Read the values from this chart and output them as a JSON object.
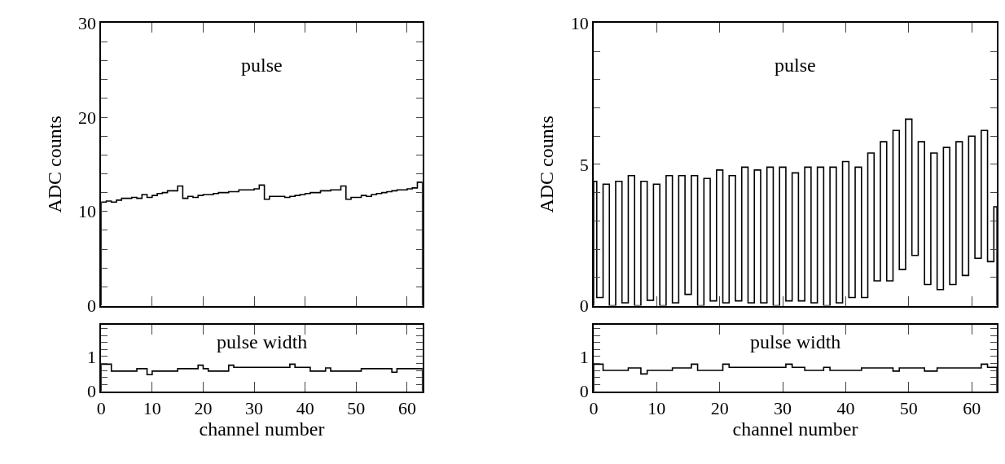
{
  "chart_data": [
    {
      "type": "histogram",
      "ylabel": "ADC counts",
      "annotations": [
        {
          "text": "pulse"
        }
      ],
      "color": "#000000",
      "bins": [
        0,
        1,
        2,
        3,
        4,
        5,
        6,
        7,
        8,
        9,
        10,
        11,
        12,
        13,
        14,
        15,
        16,
        17,
        18,
        19,
        20,
        21,
        22,
        23,
        24,
        25,
        26,
        27,
        28,
        29,
        30,
        31,
        32,
        33,
        34,
        35,
        36,
        37,
        38,
        39,
        40,
        41,
        42,
        43,
        44,
        45,
        46,
        47,
        48,
        49,
        50,
        51,
        52,
        53,
        54,
        55,
        56,
        57,
        58,
        59,
        60,
        61,
        62,
        63
      ],
      "values": [
        11.0,
        11.1,
        11.0,
        11.2,
        11.4,
        11.4,
        11.5,
        11.4,
        11.8,
        11.5,
        11.7,
        11.9,
        12.0,
        12.2,
        12.2,
        12.7,
        11.4,
        11.6,
        11.5,
        11.7,
        11.8,
        11.8,
        11.9,
        12.0,
        12.0,
        12.1,
        12.1,
        12.3,
        12.3,
        12.3,
        12.4,
        12.8,
        11.3,
        11.6,
        11.6,
        11.6,
        11.5,
        11.6,
        11.7,
        11.8,
        11.9,
        12.0,
        12.0,
        12.2,
        12.2,
        12.3,
        12.3,
        12.7,
        11.3,
        11.5,
        11.5,
        11.7,
        11.6,
        11.8,
        11.9,
        12.0,
        12.1,
        12.2,
        12.3,
        12.3,
        12.4,
        12.5,
        13.1
      ],
      "xlim": [
        0,
        63
      ],
      "xticks": [
        0,
        10,
        20,
        30,
        40,
        50,
        60
      ],
      "ylim": [
        0,
        30
      ],
      "yticks": [
        0,
        {
          "value": 2,
          "label": null
        },
        {
          "value": 4,
          "label": null
        },
        {
          "value": 6,
          "label": null
        },
        {
          "value": 8,
          "label": null
        },
        10,
        {
          "value": 12,
          "label": null
        },
        {
          "value": 14,
          "label": null
        },
        {
          "value": 16,
          "label": null
        },
        {
          "value": 18,
          "label": null
        },
        20,
        {
          "value": 22,
          "label": null
        },
        {
          "value": 24,
          "label": null
        },
        {
          "value": 26,
          "label": null
        },
        {
          "value": 28,
          "label": null
        },
        30
      ],
      "tick_labels": "y",
      "grid": false
    },
    {
      "type": "histogram",
      "ylabel": "ADC counts",
      "annotations": [
        {
          "text": "pulse"
        }
      ],
      "color": "#000000",
      "bins": [
        0,
        0.5,
        1.5,
        2.5,
        3.5,
        4.5,
        5.5,
        6.5,
        7.5,
        8.5,
        9.5,
        10.5,
        11.5,
        12.5,
        13.5,
        14.5,
        15.5,
        16.5,
        17.5,
        18.5,
        19.5,
        20.5,
        21.5,
        22.5,
        23.5,
        24.5,
        25.5,
        26.5,
        27.5,
        28.5,
        29.5,
        30.5,
        31.5,
        32.5,
        33.5,
        34.5,
        35.5,
        36.5,
        37.5,
        38.5,
        39.5,
        40.5,
        41.5,
        42.5,
        43.5,
        44.5,
        45.5,
        46.5,
        47.5,
        48.5,
        49.5,
        50.5,
        51.5,
        52.5,
        53.5,
        54.5,
        55.5,
        56.5,
        57.5,
        58.5,
        59.5,
        60.5,
        61.5,
        62.5,
        63.5,
        64
      ],
      "values": [
        4.4,
        0.29,
        4.3,
        0,
        4.4,
        0.1,
        4.6,
        0,
        4.4,
        0.19,
        4.3,
        0,
        4.6,
        0.1,
        4.6,
        0.4,
        4.6,
        0,
        4.5,
        0.17,
        4.8,
        0.1,
        4.6,
        0.17,
        4.9,
        0.1,
        4.8,
        0.1,
        4.9,
        0,
        4.9,
        0.17,
        4.7,
        0.17,
        4.9,
        0.1,
        4.9,
        0,
        4.9,
        0.1,
        5.1,
        0.29,
        4.9,
        0.29,
        5.4,
        0.88,
        5.8,
        0.88,
        6.2,
        1.28,
        6.6,
        1.78,
        5.8,
        0.75,
        5.4,
        0.57,
        5.6,
        0.75,
        5.8,
        1.07,
        6.0,
        1.68,
        6.2,
        1.56,
        3.5
      ],
      "xlim": [
        0,
        64
      ],
      "xticks": [
        0,
        10,
        20,
        30,
        40,
        50,
        60
      ],
      "ylim": [
        0,
        10
      ],
      "yticks": [
        0,
        {
          "value": 1,
          "label": null
        },
        {
          "value": 2,
          "label": null
        },
        {
          "value": 3,
          "label": null
        },
        {
          "value": 4,
          "label": null
        },
        5,
        {
          "value": 6,
          "label": null
        },
        {
          "value": 7,
          "label": null
        },
        {
          "value": 8,
          "label": null
        },
        {
          "value": 9,
          "label": null
        },
        10
      ],
      "tick_labels": "y",
      "grid": false
    },
    {
      "type": "histogram",
      "xlabel": "channel number",
      "annotations": [
        {
          "text": "pulse width"
        }
      ],
      "color": "#000000",
      "bins": [
        0,
        1,
        2,
        3,
        4,
        5,
        6,
        7,
        8,
        9,
        10,
        11,
        12,
        13,
        14,
        15,
        16,
        17,
        18,
        19,
        20,
        21,
        22,
        23,
        24,
        25,
        26,
        27,
        28,
        29,
        30,
        31,
        32,
        33,
        34,
        35,
        36,
        37,
        38,
        39,
        40,
        41,
        42,
        43,
        44,
        45,
        46,
        47,
        48,
        49,
        50,
        51,
        52,
        53,
        54,
        55,
        56,
        57,
        58,
        59,
        60,
        61,
        62,
        63
      ],
      "values": [
        0.78,
        0.78,
        0.58,
        0.58,
        0.58,
        0.58,
        0.58,
        0.65,
        0.65,
        0.48,
        0.58,
        0.58,
        0.58,
        0.58,
        0.58,
        0.65,
        0.65,
        0.65,
        0.65,
        0.75,
        0.65,
        0.58,
        0.58,
        0.58,
        0.58,
        0.75,
        0.69,
        0.69,
        0.69,
        0.69,
        0.69,
        0.69,
        0.69,
        0.69,
        0.69,
        0.69,
        0.69,
        0.78,
        0.69,
        0.69,
        0.69,
        0.58,
        0.58,
        0.58,
        0.67,
        0.58,
        0.58,
        0.58,
        0.58,
        0.58,
        0.58,
        0.65,
        0.65,
        0.65,
        0.65,
        0.65,
        0.65,
        0.55,
        0.65,
        0.65,
        0.65,
        0.65,
        0.65
      ],
      "xlim": [
        0,
        63
      ],
      "xticks": [
        0,
        10,
        20,
        30,
        40,
        50,
        60
      ],
      "ylim": [
        0,
        1.9
      ],
      "yticks": [
        0,
        {
          "value": 0.2,
          "label": null
        },
        {
          "value": 0.4,
          "label": null
        },
        {
          "value": 0.6,
          "label": null
        },
        {
          "value": 0.8,
          "label": null
        },
        1,
        {
          "value": 1.2,
          "label": null
        },
        {
          "value": 1.4,
          "label": null
        },
        {
          "value": 1.6,
          "label": null
        },
        {
          "value": 1.8,
          "label": null
        }
      ],
      "grid": false
    },
    {
      "type": "histogram",
      "xlabel": "channel number",
      "annotations": [
        {
          "text": "pulse width"
        }
      ],
      "color": "#000000",
      "bins": [
        0,
        0.5,
        1.5,
        2.5,
        3.5,
        4.5,
        5.5,
        6.5,
        7.5,
        8.5,
        9.5,
        10.5,
        11.5,
        12.5,
        13.5,
        14.5,
        15.5,
        16.5,
        17.5,
        18.5,
        19.5,
        20.5,
        21.5,
        22.5,
        23.5,
        24.5,
        25.5,
        26.5,
        27.5,
        28.5,
        29.5,
        30.5,
        31.5,
        32.5,
        33.5,
        34.5,
        35.5,
        36.5,
        37.5,
        38.5,
        39.5,
        40.5,
        41.5,
        42.5,
        43.5,
        44.5,
        45.5,
        46.5,
        47.5,
        48.5,
        49.5,
        50.5,
        51.5,
        52.5,
        53.5,
        54.5,
        55.5,
        56.5,
        57.5,
        58.5,
        59.5,
        60.5,
        61.5,
        62.5,
        63.5,
        64
      ],
      "values": [
        0.78,
        0.78,
        0.6,
        0.6,
        0.6,
        0.6,
        0.67,
        0.67,
        0.5,
        0.6,
        0.6,
        0.6,
        0.6,
        0.67,
        0.67,
        0.67,
        0.78,
        0.6,
        0.6,
        0.6,
        0.6,
        0.78,
        0.69,
        0.69,
        0.69,
        0.69,
        0.69,
        0.69,
        0.69,
        0.69,
        0.69,
        0.78,
        0.69,
        0.69,
        0.6,
        0.6,
        0.6,
        0.69,
        0.6,
        0.6,
        0.6,
        0.6,
        0.6,
        0.67,
        0.67,
        0.67,
        0.67,
        0.67,
        0.58,
        0.67,
        0.67,
        0.67,
        0.67,
        0.58,
        0.58,
        0.67,
        0.67,
        0.67,
        0.67,
        0.67,
        0.67,
        0.67,
        0.78,
        0.69,
        0.69
      ],
      "xlim": [
        0,
        64
      ],
      "xticks": [
        0,
        10,
        20,
        30,
        40,
        50,
        60
      ],
      "ylim": [
        0,
        1.9
      ],
      "yticks": [
        0,
        {
          "value": 0.2,
          "label": null
        },
        {
          "value": 0.4,
          "label": null
        },
        {
          "value": 0.6,
          "label": null
        },
        {
          "value": 0.8,
          "label": null
        },
        1,
        {
          "value": 1.2,
          "label": null
        },
        {
          "value": 1.4,
          "label": null
        },
        {
          "value": 1.6,
          "label": null
        },
        {
          "value": 1.8,
          "label": null
        }
      ],
      "grid": false
    }
  ]
}
